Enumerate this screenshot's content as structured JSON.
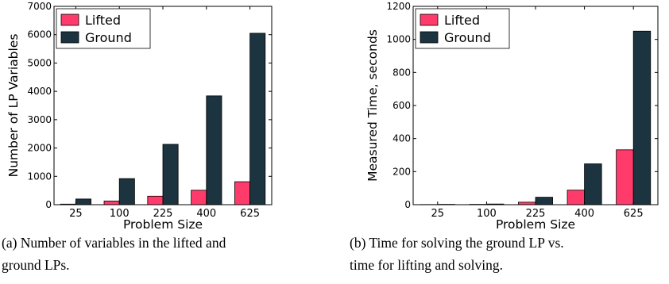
{
  "colors": {
    "lifted": "#ff3b6c",
    "ground": "#1c3340"
  },
  "chart_data": [
    {
      "type": "bar",
      "categories": [
        "25",
        "100",
        "225",
        "400",
        "625"
      ],
      "series": [
        {
          "name": "Lifted",
          "values": [
            20,
            130,
            300,
            510,
            810
          ]
        },
        {
          "name": "Ground",
          "values": [
            200,
            920,
            2130,
            3840,
            6050
          ]
        }
      ],
      "xlabel": "Problem Size",
      "ylabel": "Number of LP Variables",
      "ylim": [
        0,
        7000
      ],
      "yticks": [
        0,
        1000,
        2000,
        3000,
        4000,
        5000,
        6000,
        7000
      ],
      "grid": false,
      "legend": "top-left",
      "caption": [
        "(a) Number of variables in the lifted and",
        "ground LPs."
      ]
    },
    {
      "type": "bar",
      "categories": [
        "25",
        "100",
        "225",
        "400",
        "625"
      ],
      "series": [
        {
          "name": "Lifted",
          "values": [
            1,
            2,
            15,
            88,
            332
          ]
        },
        {
          "name": "Ground",
          "values": [
            2,
            4,
            45,
            247,
            1050
          ]
        }
      ],
      "xlabel": "Problem Size",
      "ylabel": "Measured Time, seconds",
      "ylim": [
        0,
        1200
      ],
      "yticks": [
        0,
        200,
        400,
        600,
        800,
        1000,
        1200
      ],
      "grid": false,
      "legend": "top-left",
      "caption": [
        "(b) Time for solving the ground LP vs.",
        "time for lifting and solving."
      ]
    }
  ]
}
